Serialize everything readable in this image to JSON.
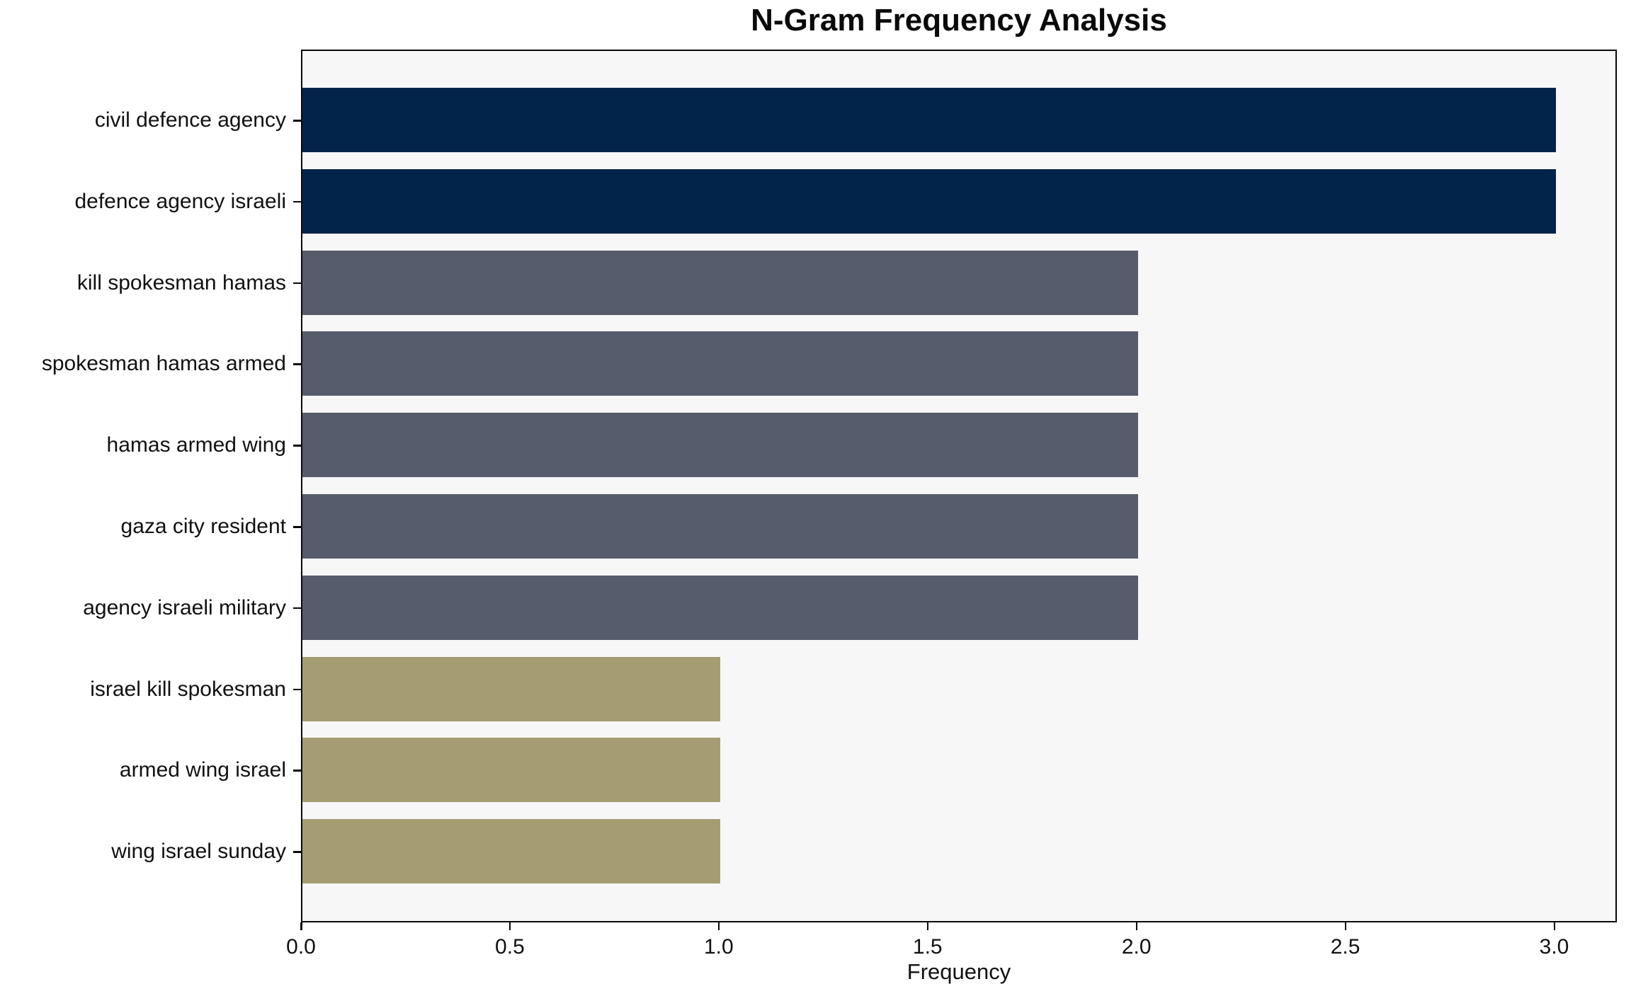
{
  "chart_data": {
    "type": "bar",
    "orientation": "horizontal",
    "title": "N-Gram Frequency Analysis",
    "xlabel": "Frequency",
    "ylabel": "",
    "categories": [
      "civil defence agency",
      "defence agency israeli",
      "kill spokesman hamas",
      "spokesman hamas armed",
      "hamas armed wing",
      "gaza city resident",
      "agency israeli military",
      "israel kill spokesman",
      "armed wing israel",
      "wing israel sunday"
    ],
    "values": [
      3,
      3,
      2,
      2,
      2,
      2,
      2,
      1,
      1,
      1
    ],
    "bar_colors": [
      "#02234a",
      "#02234a",
      "#565c6b",
      "#565c6b",
      "#565c6b",
      "#565c6b",
      "#565c6b",
      "#a59d71",
      "#a59d71",
      "#a59d71"
    ],
    "x_tick_labels": [
      "0.0",
      "0.5",
      "1.0",
      "1.5",
      "2.0",
      "2.5",
      "3.0"
    ],
    "x_tick_values": [
      0.0,
      0.5,
      1.0,
      1.5,
      2.0,
      2.5,
      3.0
    ],
    "xlim": [
      0,
      3.15
    ],
    "grid": false,
    "legend": false,
    "plot_background": "#f7f7f8",
    "figure_background": "#ffffff",
    "axis_color": "#0a0a0a"
  }
}
